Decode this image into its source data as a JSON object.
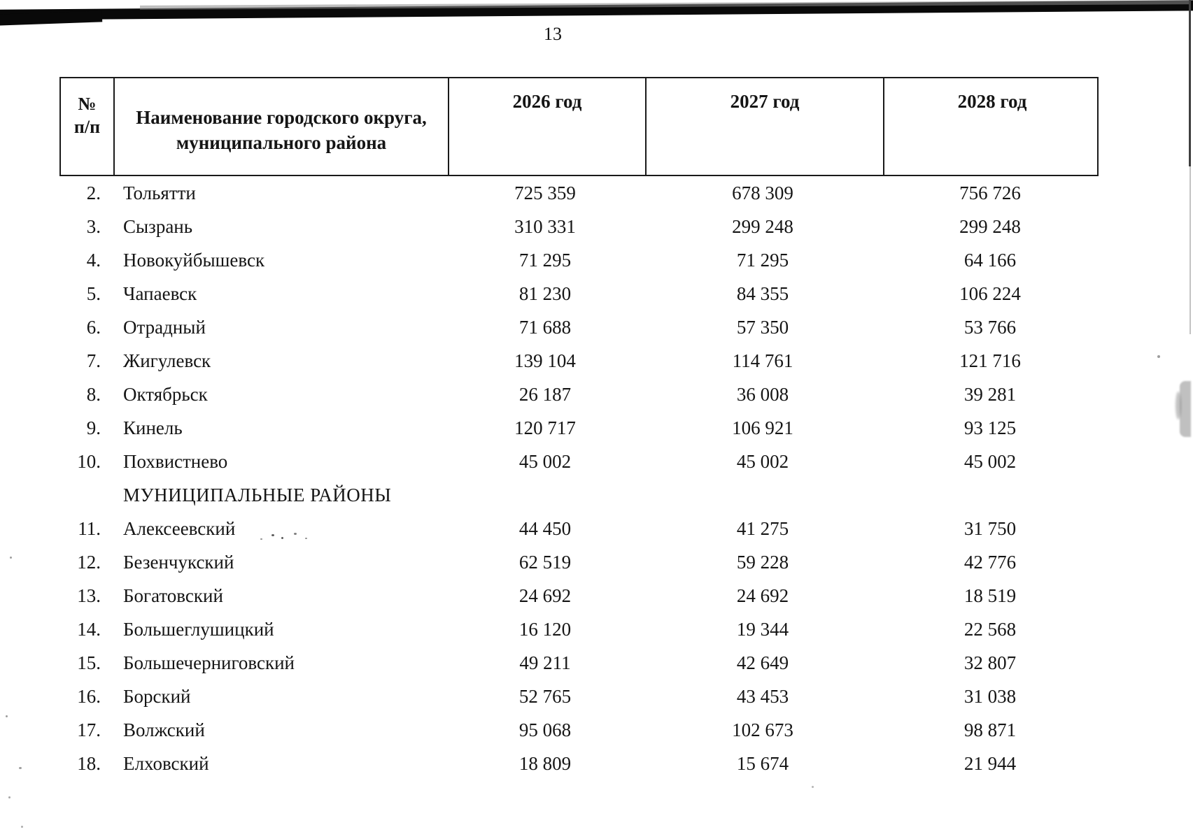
{
  "page": {
    "number": "13"
  },
  "table": {
    "header": {
      "col_num_line1": "№",
      "col_num_line2": "п/п",
      "col_name_line1": "Наименование городского округа,",
      "col_name_line2": "муниципального района",
      "col_year1": "2026 год",
      "col_year2": "2027 год",
      "col_year3": "2028 год"
    },
    "rows": [
      {
        "num": "2.",
        "name": "Тольятти",
        "y2026": "725 359",
        "y2027": "678 309",
        "y2028": "756 726"
      },
      {
        "num": "3.",
        "name": "Сызрань",
        "y2026": "310 331",
        "y2027": "299 248",
        "y2028": "299 248"
      },
      {
        "num": "4.",
        "name": "Новокуйбышевск",
        "y2026": "71 295",
        "y2027": "71 295",
        "y2028": "64 166"
      },
      {
        "num": "5.",
        "name": "Чапаевск",
        "y2026": "81 230",
        "y2027": "84 355",
        "y2028": "106 224"
      },
      {
        "num": "6.",
        "name": "Отрадный",
        "y2026": "71 688",
        "y2027": "57 350",
        "y2028": "53 766"
      },
      {
        "num": "7.",
        "name": "Жигулевск",
        "y2026": "139 104",
        "y2027": "114 761",
        "y2028": "121 716"
      },
      {
        "num": "8.",
        "name": "Октябрьск",
        "y2026": "26 187",
        "y2027": "36 008",
        "y2028": "39 281"
      },
      {
        "num": "9.",
        "name": "Кинель",
        "y2026": "120 717",
        "y2027": "106 921",
        "y2028": "93 125"
      },
      {
        "num": "10.",
        "name": "Похвистнево",
        "y2026": "45 002",
        "y2027": "45 002",
        "y2028": "45 002"
      },
      {
        "num": "",
        "name": "МУНИЦИПАЛЬНЫЕ РАЙОНЫ",
        "y2026": "",
        "y2027": "",
        "y2028": "",
        "section": true
      },
      {
        "num": "11.",
        "name": "Алексеевский",
        "y2026": "44 450",
        "y2027": "41 275",
        "y2028": "31 750"
      },
      {
        "num": "12.",
        "name": "Безенчукский",
        "y2026": "62 519",
        "y2027": "59 228",
        "y2028": "42 776"
      },
      {
        "num": "13.",
        "name": "Богатовский",
        "y2026": "24 692",
        "y2027": "24 692",
        "y2028": "18 519"
      },
      {
        "num": "14.",
        "name": "Большеглушицкий",
        "y2026": "16 120",
        "y2027": "19 344",
        "y2028": "22 568"
      },
      {
        "num": "15.",
        "name": "Большечерниговский",
        "y2026": "49 211",
        "y2027": "42 649",
        "y2028": "32 807"
      },
      {
        "num": "16.",
        "name": "Борский",
        "y2026": "52 765",
        "y2027": "43 453",
        "y2028": "31 038"
      },
      {
        "num": "17.",
        "name": "Волжский",
        "y2026": "95 068",
        "y2027": "102 673",
        "y2028": "98 871"
      },
      {
        "num": "18.",
        "name": "Елховский",
        "y2026": "18 809",
        "y2027": "15 674",
        "y2028": "21 944"
      }
    ]
  }
}
